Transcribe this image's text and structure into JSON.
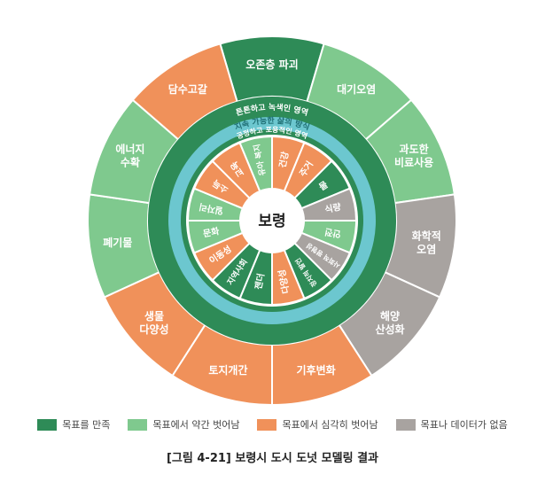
{
  "center_label": "보령",
  "statuses": {
    "met": "#2e8b57",
    "slight": "#7fc98e",
    "severe": "#f0915a",
    "nodata": "#a8a3a0"
  },
  "outer_ring": [
    {
      "label": "오존층 파괴",
      "status": "met"
    },
    {
      "label": "대기오염",
      "status": "slight"
    },
    {
      "label": "과도한\n비료사용",
      "status": "slight"
    },
    {
      "label": "화학적\n오염",
      "status": "nodata"
    },
    {
      "label": "해양\n산성화",
      "status": "nodata"
    },
    {
      "label": "기후변화",
      "status": "severe"
    },
    {
      "label": "토지개간",
      "status": "severe"
    },
    {
      "label": "생물\n다양성",
      "status": "severe"
    },
    {
      "label": "폐기물",
      "status": "slight"
    },
    {
      "label": "에너지\n수확",
      "status": "slight"
    },
    {
      "label": "담수고갈",
      "status": "severe"
    }
  ],
  "band_labels": {
    "ecological": "튼튼하고 녹색인 영역",
    "sustainable": "지속 가능한 삶의 방식",
    "inclusive": "공정하고 포용적인 영역"
  },
  "inner_ring": [
    {
      "label": "건강",
      "status": "severe"
    },
    {
      "label": "주거",
      "status": "severe"
    },
    {
      "label": "물",
      "status": "met"
    },
    {
      "label": "식량",
      "status": "nodata"
    },
    {
      "label": "안전",
      "status": "slight"
    },
    {
      "label": "사회적 평형성",
      "status": "nodata"
    },
    {
      "label": "정치적 발언",
      "status": "met"
    },
    {
      "label": "다양성",
      "status": "severe"
    },
    {
      "label": "젠더",
      "status": "met"
    },
    {
      "label": "지역사회",
      "status": "met"
    },
    {
      "label": "이동성",
      "status": "severe"
    },
    {
      "label": "문화",
      "status": "slight"
    },
    {
      "label": "일자리",
      "status": "slight"
    },
    {
      "label": "소득",
      "status": "severe"
    },
    {
      "label": "교육",
      "status": "severe"
    },
    {
      "label": "유아 복지",
      "status": "slight"
    }
  ],
  "legend": [
    {
      "label": "목표를 만족",
      "color": "#2e8b57"
    },
    {
      "label": "목표에서 약간 벗어남",
      "color": "#7fc98e"
    },
    {
      "label": "목표에서 심각히 벗어남",
      "color": "#f0915a"
    },
    {
      "label": "목표나 데이터가 없음",
      "color": "#a8a3a0"
    }
  ],
  "caption": "[그림 4-21] 보령시 도시 도넛 모델링 결과"
}
